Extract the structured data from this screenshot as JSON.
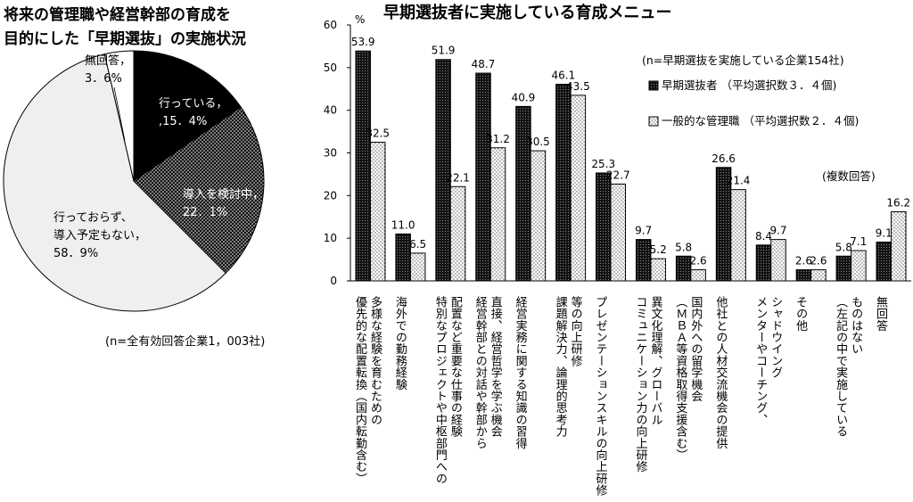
{
  "chart_data": [
    {
      "type": "pie",
      "title_lines": [
        "将来の管理職や経営幹部の育成を",
        "目的にした「早期選抜」の実施状況"
      ],
      "note": "(n=全有効回答企業1，003社)",
      "slices": [
        {
          "label": "行っている，",
          "value_text": ",15．4%",
          "value": 15.4,
          "color": "#000000"
        },
        {
          "label": "導入を検討中，",
          "value_text": "22．1%",
          "value": 22.1,
          "color": "#1a1a1a",
          "pattern": "dots"
        },
        {
          "label": "行っておらず、",
          "label2": "導入予定もない，",
          "value_text": "58．9%",
          "value": 58.9,
          "color": "#eeeeee"
        },
        {
          "label": "無回答，",
          "value_text": "3．6%",
          "value": 3.6,
          "color": "#ffffff"
        }
      ]
    },
    {
      "type": "bar",
      "title": "早期選抜者に実施している育成メニュー",
      "ylabel": "%",
      "ylim": [
        0,
        60
      ],
      "yticks": [
        "0",
        "10",
        "20",
        "30",
        "40",
        "50",
        "60"
      ],
      "annotation": "(n=早期選抜を実施している企業154社)",
      "note": "(複数回答)",
      "series": [
        {
          "name": "早期選抜者 （平均選択数３．４個)",
          "fill": "dark-dots",
          "values": [
            53.9,
            11.0,
            51.9,
            48.7,
            40.9,
            46.1,
            25.3,
            9.7,
            5.8,
            26.6,
            8.4,
            2.6,
            5.8,
            9.1
          ],
          "labels": [
            "53.9",
            "11.0",
            "51.9",
            "48.7",
            "40.9",
            "46.1",
            "25.3",
            "9.7",
            "5.8",
            "26.6",
            "8.4",
            "2.6",
            "5.8",
            "9.1"
          ]
        },
        {
          "name": "一般的な管理職 （平均選択数２．４個)",
          "fill": "light-dots",
          "values": [
            32.5,
            6.5,
            22.1,
            31.2,
            30.5,
            43.5,
            22.7,
            5.2,
            2.6,
            21.4,
            9.7,
            2.6,
            7.1,
            16.2
          ],
          "labels": [
            "32.5",
            "6.5",
            "22.1",
            "31.2",
            "30.5",
            "43.5",
            "22.7",
            "5.2",
            "2.6",
            "21.4",
            "9.7",
            "2.6",
            "7.1",
            "16.2"
          ]
        }
      ],
      "categories": [
        [
          "優先的な配置転換（国内転勤含む）",
          "多様な経験を育むための"
        ],
        [
          "海外での勤務経験"
        ],
        [
          "特別なプロジェクトや中枢部門への",
          "配置など重要な仕事の経験"
        ],
        [
          "経営幹部との対話や幹部から",
          "直接、経営哲学を学ぶ機会"
        ],
        [
          "経営実務に関する知識の習得"
        ],
        [
          "課題解決力、論理的思考力",
          "等の向上研修"
        ],
        [
          "プレゼンテーションスキルの向上研修"
        ],
        [
          "コミュニケーション力の向上研修",
          "異文化理解、グローバル"
        ],
        [
          "（ＭＢＡ等資格取得支援含む）",
          "国内外への留学機会"
        ],
        [
          "他社との人材交流機会の提供"
        ],
        [
          "メンターやコーチング、",
          "シャドウイング"
        ],
        [
          "その他"
        ],
        [
          "（左記の中で実施している",
          "ものはない"
        ],
        [
          "無回答"
        ]
      ]
    }
  ]
}
